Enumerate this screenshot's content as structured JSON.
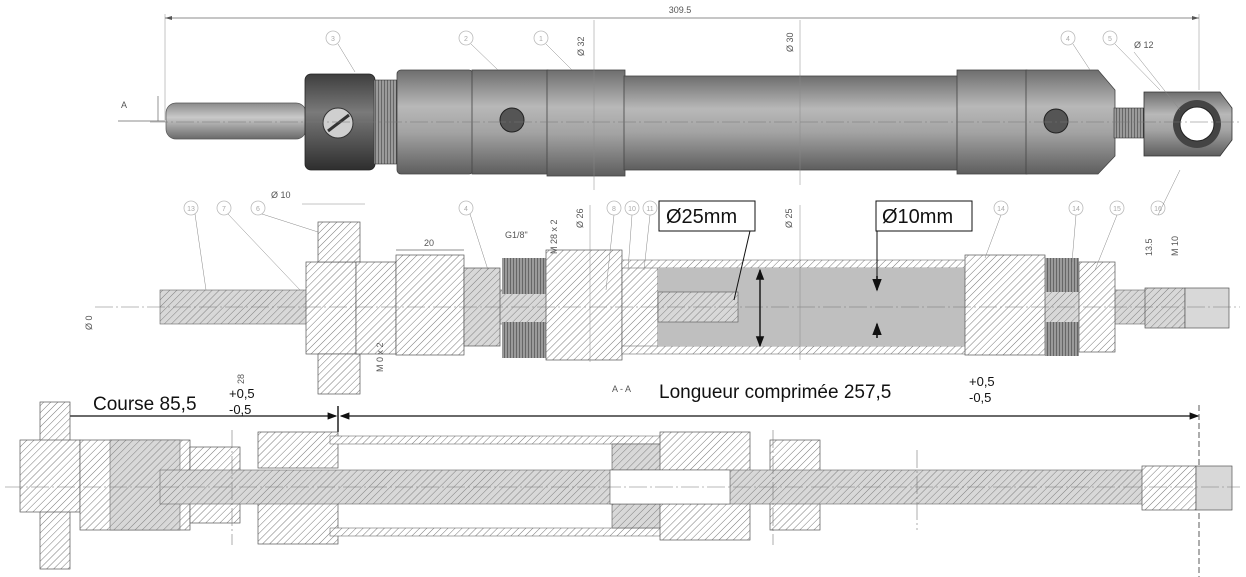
{
  "drawing": {
    "overall_length": "309.5",
    "diam_32": "Ø 32",
    "diam_30": "Ø 30",
    "diam_12": "Ø 12",
    "diam_10_top": "Ø 10",
    "dim_20": "20",
    "thread_g18": "G1/8\"",
    "thread_m28": "M 28 x 2",
    "diam_26": "Ø 26",
    "diam_25": "Ø 25",
    "dim_13_5": "13.5",
    "thread_m10": "M 10",
    "diam_0": "Ø 0",
    "section_label": "A - A",
    "view_marker": "A",
    "dim_28": "28",
    "thread_m0": "M 0 x 2"
  },
  "callouts": [
    "3",
    "2",
    "1",
    "4",
    "5",
    "13",
    "7",
    "6",
    "4",
    "8",
    "10",
    "11",
    "14",
    "14",
    "15",
    "16"
  ],
  "annotations": {
    "bore_box": "Ø25mm",
    "rod_box": "Ø10mm",
    "stroke_label": "Course 85,5",
    "stroke_tol_plus": "+0,5",
    "stroke_tol_minus": "-0,5",
    "compressed_label": "Longueur comprimée 257,5",
    "compressed_tol_plus": "+0,5",
    "compressed_tol_minus": "-0,5"
  },
  "colors": {
    "body_dark": "#6f6f6f",
    "body_mid": "#8e8e8e",
    "body_light": "#bdbdbd",
    "hatch": "#5a5a5a"
  }
}
